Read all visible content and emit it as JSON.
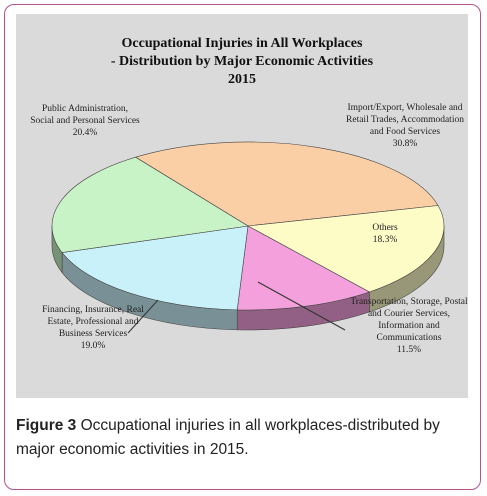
{
  "chart_data": {
    "type": "pie3d",
    "title": "Occupational Injuries in All Workplaces",
    "subtitle": "- Distribution by Major Economic Activities",
    "year_label": "2015",
    "categories": [
      "Import/Export, Wholesale and Retail Trades, Accommodation and Food Services",
      "Others",
      "Transportation, Storage, Postal and Courier Services, Information and Communications",
      "Financing, Insurance, Real Estate, Professional and Business Services",
      "Public Administration, Social and Personal Services"
    ],
    "values": [
      30.8,
      18.3,
      11.5,
      19,
      20.4
    ],
    "value_labels": [
      "30.8%",
      "18.3%",
      "11.5%",
      "19.0%",
      "20.4%"
    ],
    "colors": [
      "#fbcfa6",
      "#fdfbc6",
      "#f3a0dc",
      "#c9f1fa",
      "#c8f3c6"
    ]
  },
  "caption": {
    "label": "Figure 3",
    "text": "Occupational injuries in all workplaces-distributed by major economic activities in 2015."
  }
}
